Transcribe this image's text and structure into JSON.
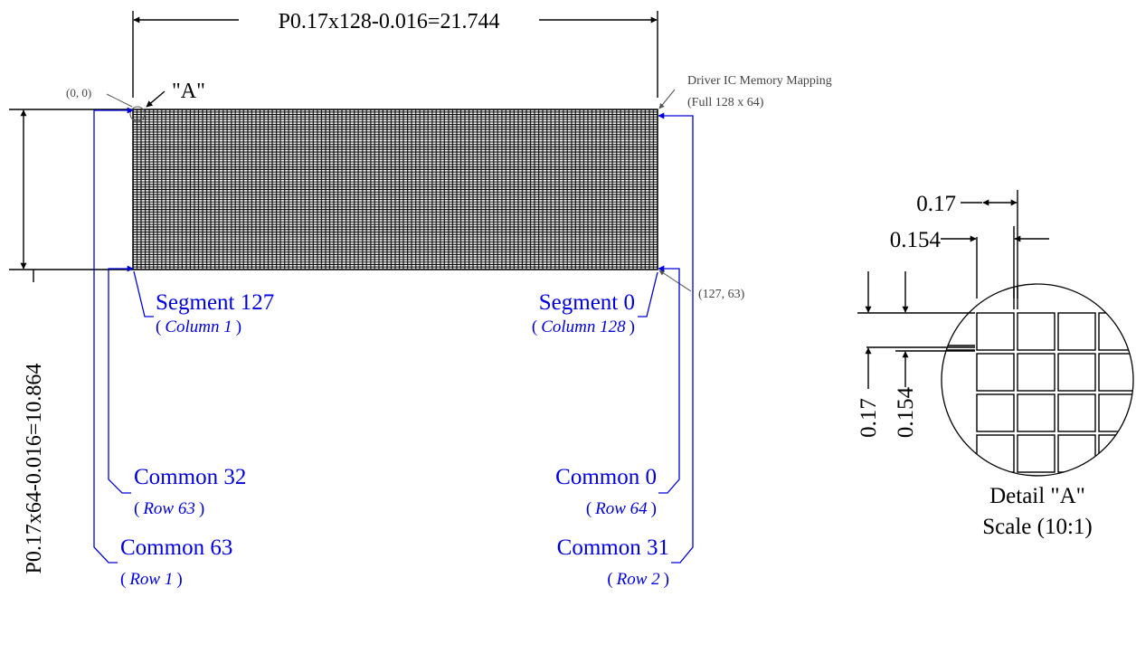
{
  "dimensions": {
    "width_label": "P0.17x128-0.016=21.744",
    "height_label": "P0.17x64-0.016=10.864"
  },
  "grid": {
    "columns": 128,
    "rows": 64
  },
  "markers": {
    "origin": "(0, 0)",
    "detail_ref": "\"A\"",
    "end": "(127, 63)"
  },
  "mapping_note": {
    "line1": "Driver IC Memory Mapping",
    "line2": "(Full 128 x 64)"
  },
  "left_labels": [
    {
      "main": "Segment 127",
      "open": "(",
      "sub": "Column 1",
      "close": ")"
    },
    {
      "main": "Common 32",
      "open": "(",
      "sub": "Row 63",
      "close": ")"
    },
    {
      "main": "Common 63",
      "open": "(",
      "sub": "Row 1",
      "close": ")"
    }
  ],
  "right_labels": [
    {
      "main": "Segment 0",
      "open": "(",
      "sub": "Column 128",
      "close": ")"
    },
    {
      "main": "Common 0",
      "open": "(",
      "sub": "Row 64",
      "close": ")"
    },
    {
      "main": "Common 31",
      "open": "(",
      "sub": "Row 2",
      "close": ")"
    }
  ],
  "detail": {
    "pitch": "0.17",
    "pixel": "0.154",
    "title": "Detail \"A\"",
    "scale": "Scale (10:1)"
  },
  "colors": {
    "line": "#000000",
    "annotation": "#0000dd",
    "note": "#444444"
  }
}
